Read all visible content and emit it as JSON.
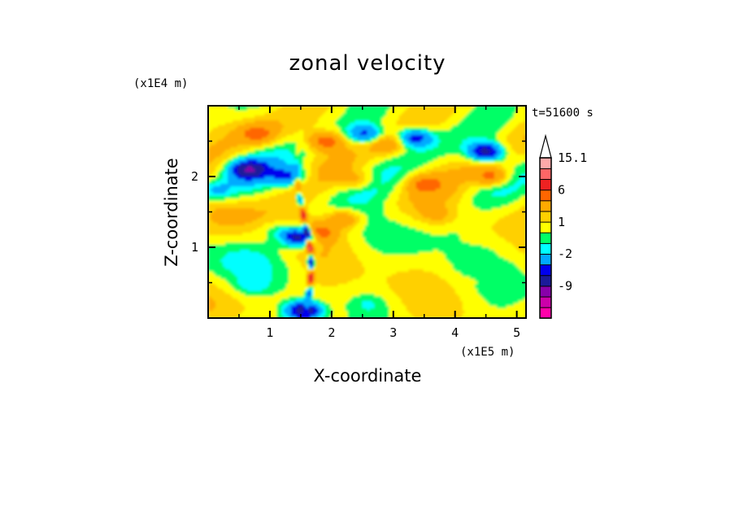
{
  "chart_data": {
    "type": "heatmap",
    "title": "zonal velocity",
    "xlabel": "X-coordinate",
    "ylabel": "Z-coordinate",
    "x_scale_label": "(x1E5 m)",
    "y_scale_label": "(x1E4 m)",
    "time_label": "t=51600 s",
    "xlim": [
      0,
      5.15
    ],
    "ylim": [
      0,
      3.0
    ],
    "x_ticks": [
      "1",
      "2",
      "3",
      "4",
      "5"
    ],
    "y_ticks": [
      "1",
      "2"
    ],
    "colorbar": {
      "tick_labels": [
        "15.1",
        "6",
        "1",
        "-2",
        "-9"
      ],
      "levels": [
        -15,
        -12,
        -9,
        -6,
        -4,
        -2,
        -1,
        0,
        1,
        2,
        4,
        6,
        9,
        12,
        15.1
      ],
      "colors": [
        "#ff00aa",
        "#cc00aa",
        "#8800aa",
        "#1a1a9a",
        "#0000ee",
        "#00aaff",
        "#00ffff",
        "#00ff66",
        "#ffff00",
        "#ffd000",
        "#ffaa00",
        "#ff6600",
        "#ee2222",
        "#ff6666",
        "#ffaaaa",
        "#ffffff"
      ]
    },
    "features": [
      {
        "x": 0.8,
        "z": 2.6,
        "u": 3.5
      },
      {
        "x": 1.9,
        "z": 2.5,
        "u": 5
      },
      {
        "x": 2.9,
        "z": 2.45,
        "u": 2.8
      },
      {
        "x": 0.65,
        "z": 2.1,
        "u": -7
      },
      {
        "x": 1.3,
        "z": 2.0,
        "u": -4.5
      },
      {
        "x": 4.5,
        "z": 2.35,
        "u": -8
      },
      {
        "x": 3.35,
        "z": 2.55,
        "u": -6
      },
      {
        "x": 2.55,
        "z": 2.6,
        "u": -5
      },
      {
        "x": 1.5,
        "z": 1.15,
        "u": -10
      },
      {
        "x": 1.75,
        "z": 1.2,
        "u": 6
      },
      {
        "x": 2.2,
        "z": 1.4,
        "u": 3.5
      },
      {
        "x": 3.5,
        "z": 1.9,
        "u": 3
      },
      {
        "x": 4.6,
        "z": 2.0,
        "u": 4.5
      },
      {
        "x": 2.4,
        "z": 1.95,
        "u": 2.5
      },
      {
        "x": 3.7,
        "z": 1.45,
        "u": 1.5
      },
      {
        "x": 1.1,
        "z": 1.25,
        "u": -1.5
      },
      {
        "x": 0.3,
        "z": 1.5,
        "u": 0.7
      },
      {
        "x": 0.7,
        "z": 0.45,
        "u": -1.3
      },
      {
        "x": 1.55,
        "z": 0.1,
        "u": -9
      },
      {
        "x": 2.6,
        "z": 0.2,
        "u": -1.2
      },
      {
        "x": 4.4,
        "z": 0.55,
        "u": 0.6
      },
      {
        "x": 4.6,
        "z": 0.8,
        "u": 0.5
      },
      {
        "x": 3.3,
        "z": 1.1,
        "u": -0.3
      },
      {
        "x": 4.0,
        "z": 1.2,
        "u": -0.4
      },
      {
        "x": 0.1,
        "z": 1.8,
        "u": -2.5
      }
    ]
  }
}
